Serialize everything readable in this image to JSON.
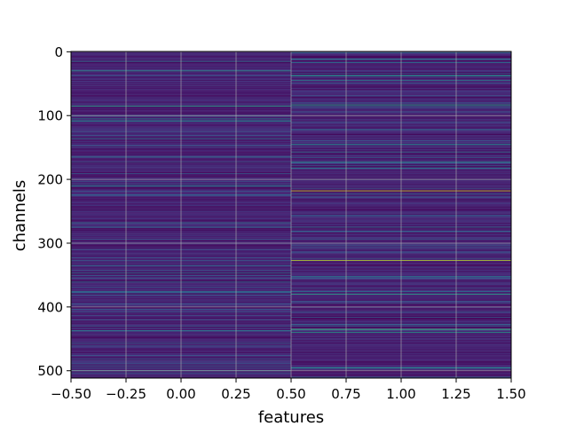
{
  "chart_data": {
    "type": "heatmap",
    "colormap": "viridis",
    "xlabel": "features",
    "ylabel": "channels",
    "xlim": [
      -0.5,
      1.5
    ],
    "ylim": [
      511.5,
      -0.5
    ],
    "rows": 512,
    "columns": 2,
    "x_tick_labels": [
      "−0.50",
      "−0.25",
      "0.00",
      "0.25",
      "0.50",
      "0.75",
      "1.00",
      "1.25",
      "1.50"
    ],
    "x_tick_values": [
      -0.5,
      -0.25,
      0,
      0.25,
      0.5,
      0.75,
      1,
      1.25,
      1.5
    ],
    "y_tick_labels": [
      "0",
      "100",
      "200",
      "300",
      "400",
      "500"
    ],
    "y_tick_values": [
      0,
      100,
      200,
      300,
      400,
      500
    ],
    "grid": true,
    "value_range": [
      0,
      1
    ],
    "baseline_value": 0.1,
    "notable_cells": [
      {
        "channel": 30,
        "feature": 0,
        "value": 0.55
      },
      {
        "channel": 85,
        "feature": 0,
        "value": 0.6
      },
      {
        "channel": 100,
        "feature": 0,
        "value": 0.45
      },
      {
        "channel": 275,
        "feature": 0,
        "value": 0.4
      },
      {
        "channel": 500,
        "feature": 0,
        "value": 0.55
      },
      {
        "channel": 38,
        "feature": 1,
        "value": 0.5
      },
      {
        "channel": 45,
        "feature": 1,
        "value": 0.45
      },
      {
        "channel": 83,
        "feature": 1,
        "value": 0.6
      },
      {
        "channel": 145,
        "feature": 1,
        "value": 0.5
      },
      {
        "channel": 173,
        "feature": 1,
        "value": 0.45
      },
      {
        "channel": 218,
        "feature": 1,
        "value": 0.95
      },
      {
        "channel": 327,
        "feature": 1,
        "value": 0.9
      },
      {
        "channel": 380,
        "feature": 1,
        "value": 0.6
      },
      {
        "channel": 435,
        "feature": 1,
        "value": 0.7
      },
      {
        "channel": 440,
        "feature": 1,
        "value": 0.55
      },
      {
        "channel": 495,
        "feature": 1,
        "value": 0.45
      }
    ]
  }
}
